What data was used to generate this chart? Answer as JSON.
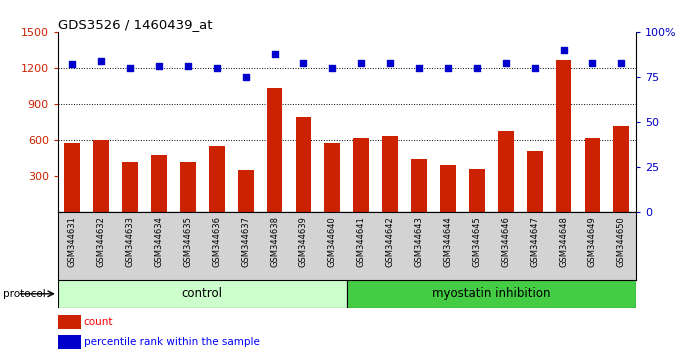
{
  "title": "GDS3526 / 1460439_at",
  "samples": [
    "GSM344631",
    "GSM344632",
    "GSM344633",
    "GSM344634",
    "GSM344635",
    "GSM344636",
    "GSM344637",
    "GSM344638",
    "GSM344639",
    "GSM344640",
    "GSM344641",
    "GSM344642",
    "GSM344643",
    "GSM344644",
    "GSM344645",
    "GSM344646",
    "GSM344647",
    "GSM344648",
    "GSM344649",
    "GSM344650"
  ],
  "counts": [
    575,
    600,
    415,
    480,
    420,
    555,
    350,
    1030,
    790,
    580,
    620,
    635,
    440,
    390,
    360,
    680,
    510,
    1270,
    615,
    720
  ],
  "percentile_ranks": [
    82,
    84,
    80,
    81,
    81,
    80,
    75,
    88,
    83,
    80,
    83,
    83,
    80,
    80,
    80,
    83,
    80,
    90,
    83,
    83
  ],
  "control_count": 10,
  "bar_color": "#cc2200",
  "dot_color": "#0000cc",
  "control_label": "control",
  "treatment_label": "myostatin inhibition",
  "control_bg": "#ccffcc",
  "treatment_bg": "#44cc44",
  "ylim_left": [
    0,
    1500
  ],
  "ylim_right": [
    0,
    100
  ],
  "yticks_left": [
    300,
    600,
    900,
    1200,
    1500
  ],
  "yticks_right": [
    0,
    25,
    50,
    75,
    100
  ],
  "grid_values": [
    600,
    900,
    1200
  ],
  "legend_count_label": "count",
  "legend_pct_label": "percentile rank within the sample",
  "protocol_label": "protocol"
}
